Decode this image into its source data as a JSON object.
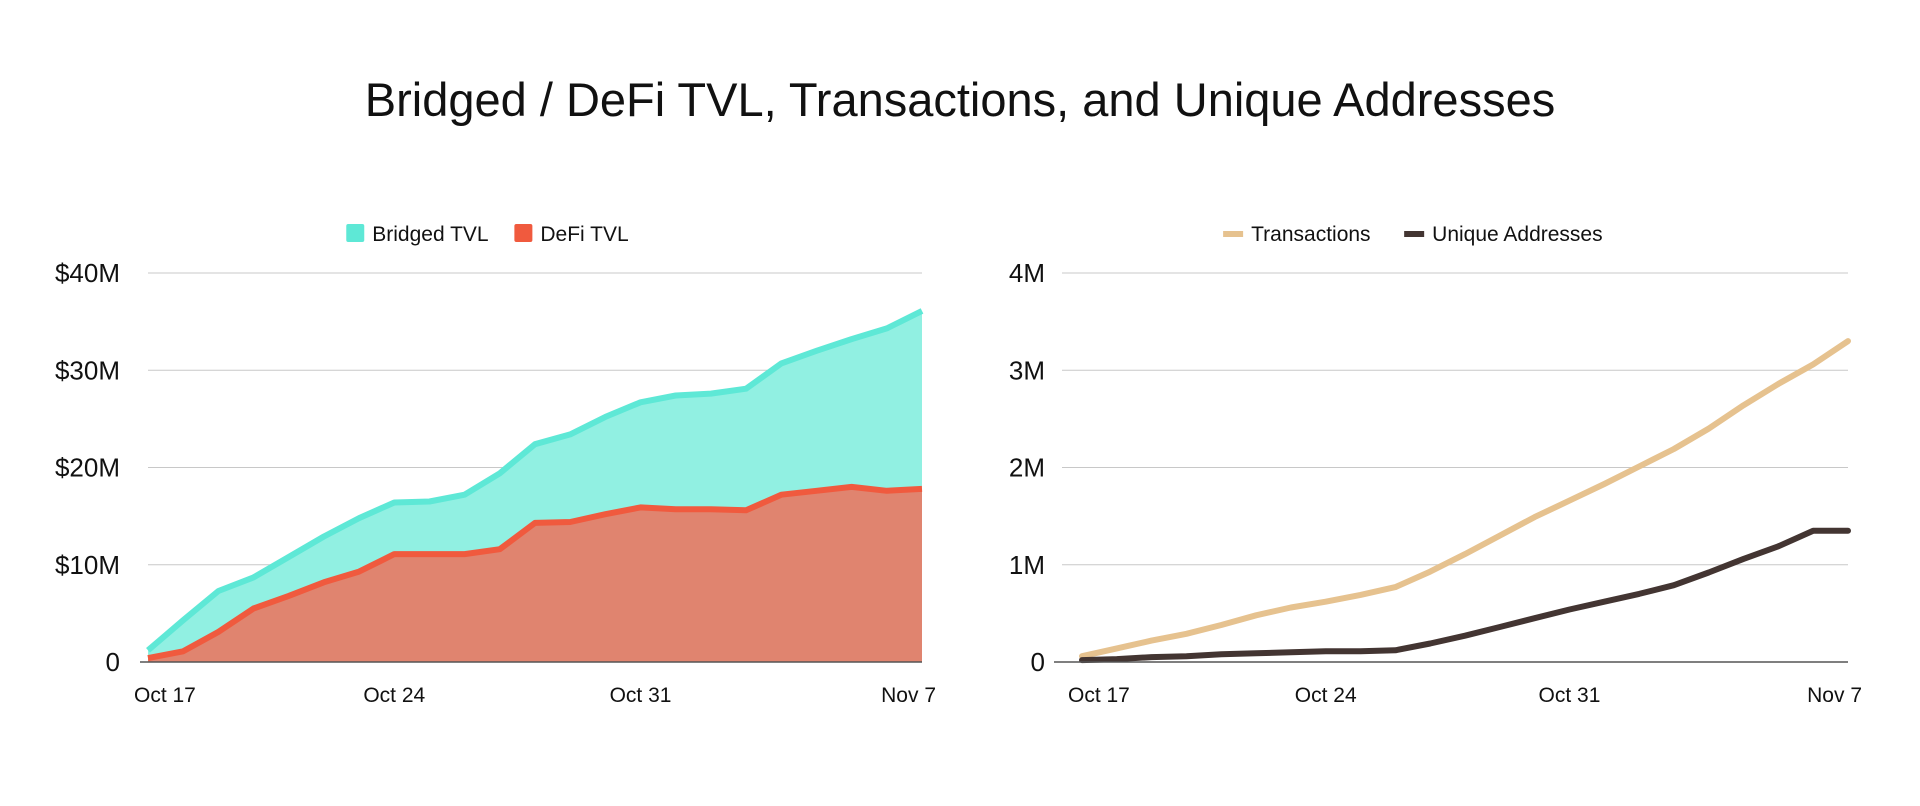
{
  "page": {
    "title": "Bridged / DeFi TVL, Transactions, and Unique Addresses"
  },
  "chart_data": [
    {
      "type": "area",
      "title": "",
      "xlabel": "",
      "ylabel": "",
      "xtick_labels": [
        "Oct 17",
        "Oct 24",
        "Oct 31",
        "Nov 7"
      ],
      "ytick_labels": [
        "0",
        "$10M",
        "$20M",
        "$30M",
        "$40M"
      ],
      "ylim": [
        0,
        40
      ],
      "ytick_values": [
        0,
        10,
        20,
        30,
        40
      ],
      "grid": true,
      "legend_position": "top-center",
      "series": [
        {
          "name": "Bridged TVL",
          "color": "#5ee8d6",
          "fill": "#91f0e2",
          "values": [
            1.2,
            4.3,
            7.3,
            8.7,
            10.8,
            12.9,
            14.8,
            16.4,
            16.5,
            17.2,
            19.4,
            22.4,
            23.4,
            25.2,
            26.7,
            27.4,
            27.6,
            28.1,
            30.7,
            32.0,
            33.2,
            34.3,
            36.1
          ]
        },
        {
          "name": "DeFi TVL",
          "color": "#f05a3e",
          "fill": "#e0846f",
          "values": [
            0.4,
            1.1,
            3.1,
            5.5,
            6.8,
            8.2,
            9.3,
            11.1,
            11.1,
            11.1,
            11.6,
            14.3,
            14.4,
            15.2,
            15.9,
            15.7,
            15.7,
            15.6,
            17.2,
            17.6,
            18.0,
            17.6,
            17.8
          ]
        }
      ]
    },
    {
      "type": "line",
      "title": "",
      "xlabel": "",
      "ylabel": "",
      "xtick_labels": [
        "Oct 17",
        "Oct 24",
        "Oct 31",
        "Nov 7"
      ],
      "ytick_labels": [
        "0",
        "1M",
        "2M",
        "3M",
        "4M"
      ],
      "ylim": [
        0,
        4
      ],
      "ytick_values": [
        0,
        1,
        2,
        3,
        4
      ],
      "grid": true,
      "legend_position": "top-center",
      "series": [
        {
          "name": "Transactions",
          "color": "#e6c28f",
          "values": [
            0.06,
            0.14,
            0.22,
            0.29,
            0.38,
            0.48,
            0.56,
            0.62,
            0.69,
            0.77,
            0.93,
            1.11,
            1.3,
            1.49,
            1.66,
            1.83,
            2.01,
            2.19,
            2.4,
            2.64,
            2.86,
            3.06,
            3.3
          ]
        },
        {
          "name": "Unique Addresses",
          "color": "#433532",
          "values": [
            0.02,
            0.03,
            0.05,
            0.06,
            0.08,
            0.09,
            0.1,
            0.11,
            0.11,
            0.12,
            0.19,
            0.27,
            0.36,
            0.45,
            0.54,
            0.62,
            0.7,
            0.79,
            0.92,
            1.06,
            1.19,
            1.35,
            1.35
          ]
        }
      ]
    }
  ]
}
